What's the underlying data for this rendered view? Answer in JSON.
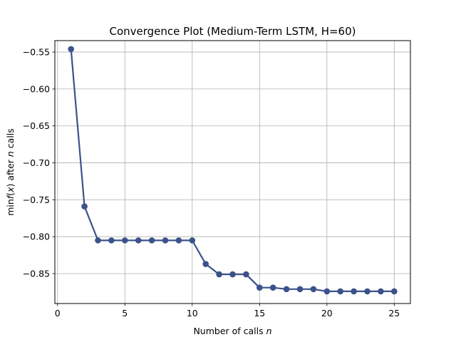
{
  "chart_data": {
    "type": "line",
    "title": "Convergence Plot (Medium-Term LSTM, H=60)",
    "xlabel_parts": [
      "Number of calls ",
      "n"
    ],
    "ylabel_parts": [
      "min",
      "f",
      "(",
      "x",
      ") after ",
      "n",
      " calls"
    ],
    "xlim": [
      -0.2,
      26.2
    ],
    "ylim": [
      -0.8905,
      -0.5345
    ],
    "xticks": [
      0,
      5,
      10,
      15,
      20,
      25
    ],
    "yticks": [
      -0.55,
      -0.6,
      -0.65,
      -0.7,
      -0.75,
      -0.8,
      -0.85
    ],
    "xtick_labels": [
      "0",
      "5",
      "10",
      "15",
      "20",
      "25"
    ],
    "ytick_labels": [
      "−0.55",
      "−0.60",
      "−0.65",
      "−0.70",
      "−0.75",
      "−0.80",
      "−0.85"
    ],
    "grid": true,
    "series": [
      {
        "color": "#3b528b",
        "x": [
          1,
          2,
          3,
          4,
          5,
          6,
          7,
          8,
          9,
          10,
          11,
          12,
          13,
          14,
          15,
          16,
          17,
          18,
          19,
          20,
          21,
          22,
          23,
          24,
          25
        ],
        "y": [
          -0.546,
          -0.759,
          -0.805,
          -0.805,
          -0.805,
          -0.805,
          -0.805,
          -0.805,
          -0.805,
          -0.805,
          -0.837,
          -0.851,
          -0.851,
          -0.851,
          -0.869,
          -0.869,
          -0.871,
          -0.871,
          -0.871,
          -0.874,
          -0.874,
          -0.874,
          -0.874,
          -0.874,
          -0.874
        ]
      }
    ]
  }
}
